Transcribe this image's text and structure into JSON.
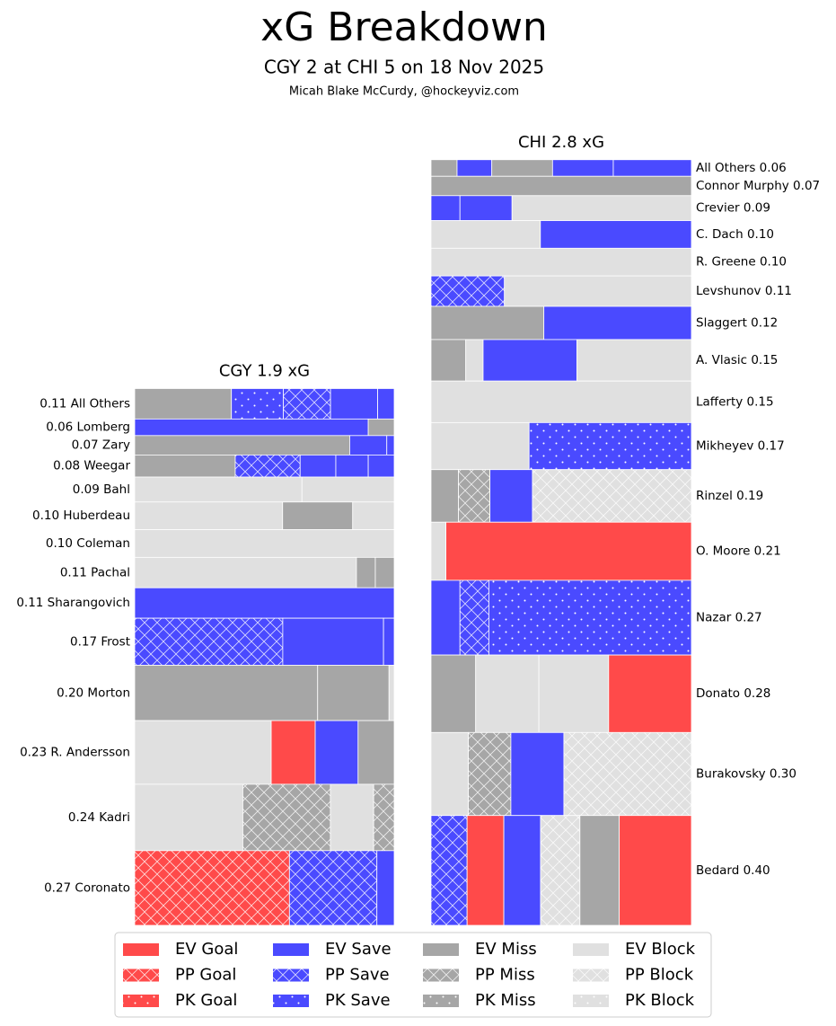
{
  "chart_data": {
    "type": "xg-breakdown",
    "title": "xG Breakdown",
    "subtitle": "CGY 2 at CHI 5 on 18 Nov 2025",
    "credit": "Micah Blake McCurdy, @hockeyviz.com",
    "legend": [
      {
        "name": "EV Goal",
        "color": "#ff4a4a",
        "pattern": "solid"
      },
      {
        "name": "PP Goal",
        "color": "#ff4a4a",
        "pattern": "cross"
      },
      {
        "name": "PK Goal",
        "color": "#ff4a4a",
        "pattern": "dots"
      },
      {
        "name": "EV Save",
        "color": "#4a4aff",
        "pattern": "solid"
      },
      {
        "name": "PP Save",
        "color": "#4a4aff",
        "pattern": "cross"
      },
      {
        "name": "PK Save",
        "color": "#4a4aff",
        "pattern": "dots"
      },
      {
        "name": "EV Miss",
        "color": "#a6a6a6",
        "pattern": "solid"
      },
      {
        "name": "PP Miss",
        "color": "#a6a6a6",
        "pattern": "cross"
      },
      {
        "name": "PK Miss",
        "color": "#a6a6a6",
        "pattern": "dots"
      },
      {
        "name": "EV Block",
        "color": "#e0e0e0",
        "pattern": "solid"
      },
      {
        "name": "PP Block",
        "color": "#e0e0e0",
        "pattern": "cross"
      },
      {
        "name": "PK Block",
        "color": "#e0e0e0",
        "pattern": "dots"
      }
    ],
    "panels": [
      {
        "title": "CGY 1.9 xG",
        "rows": [
          {
            "label": "0.11 All Others",
            "segments": [
              {
                "type": "EV Miss",
                "value": 0.041
              },
              {
                "type": "PK Save",
                "value": 0.022
              },
              {
                "type": "PP Save",
                "value": 0.02
              },
              {
                "type": "EV Save",
                "value": 0.02
              },
              {
                "type": "EV Save",
                "value": 0.007
              }
            ]
          },
          {
            "label": "0.06 Lomberg",
            "segments": [
              {
                "type": "EV Save",
                "value": 0.054
              },
              {
                "type": "EV Miss",
                "value": 0.006
              }
            ]
          },
          {
            "label": "0.07 Zary",
            "segments": [
              {
                "type": "EV Miss",
                "value": 0.058
              },
              {
                "type": "EV Save",
                "value": 0.01
              },
              {
                "type": "EV Save",
                "value": 0.002
              }
            ]
          },
          {
            "label": "0.08 Weegar",
            "segments": [
              {
                "type": "EV Miss",
                "value": 0.031
              },
              {
                "type": "PP Save",
                "value": 0.02
              },
              {
                "type": "EV Save",
                "value": 0.011
              },
              {
                "type": "EV Save",
                "value": 0.01
              },
              {
                "type": "EV Save",
                "value": 0.008
              }
            ]
          },
          {
            "label": "0.09 Bahl",
            "segments": [
              {
                "type": "EV Block",
                "value": 0.058
              },
              {
                "type": "EV Block",
                "value": 0.032
              }
            ]
          },
          {
            "label": "0.10 Huberdeau",
            "segments": [
              {
                "type": "EV Block",
                "value": 0.057
              },
              {
                "type": "EV Miss",
                "value": 0.027
              },
              {
                "type": "EV Block",
                "value": 0.016
              }
            ]
          },
          {
            "label": "0.10 Coleman",
            "segments": [
              {
                "type": "EV Block",
                "value": 0.1
              }
            ]
          },
          {
            "label": "0.11 Pachal",
            "segments": [
              {
                "type": "EV Block",
                "value": 0.094
              },
              {
                "type": "EV Miss",
                "value": 0.008
              },
              {
                "type": "EV Miss",
                "value": 0.008
              }
            ]
          },
          {
            "label": "0.11 Sharangovich",
            "segments": [
              {
                "type": "EV Save",
                "value": 0.11
              }
            ]
          },
          {
            "label": "0.17 Frost",
            "segments": [
              {
                "type": "PP Save",
                "value": 0.097
              },
              {
                "type": "EV Save",
                "value": 0.066
              },
              {
                "type": "EV Save",
                "value": 0.007
              }
            ]
          },
          {
            "label": "0.20 Morton",
            "segments": [
              {
                "type": "EV Miss",
                "value": 0.141
              },
              {
                "type": "EV Miss",
                "value": 0.055
              },
              {
                "type": "EV Block",
                "value": 0.004
              }
            ]
          },
          {
            "label": "0.23 R. Andersson",
            "segments": [
              {
                "type": "EV Block",
                "value": 0.121
              },
              {
                "type": "EV Goal",
                "value": 0.039
              },
              {
                "type": "EV Save",
                "value": 0.038
              },
              {
                "type": "EV Miss",
                "value": 0.032
              }
            ]
          },
          {
            "label": "0.24 Kadri",
            "segments": [
              {
                "type": "EV Block",
                "value": 0.1
              },
              {
                "type": "PP Miss",
                "value": 0.081
              },
              {
                "type": "EV Block",
                "value": 0.04
              },
              {
                "type": "PP Miss",
                "value": 0.019
              }
            ]
          },
          {
            "label": "0.27 Coronato",
            "segments": [
              {
                "type": "PP Goal",
                "value": 0.161
              },
              {
                "type": "PP Save",
                "value": 0.091
              },
              {
                "type": "EV Save",
                "value": 0.018
              }
            ]
          }
        ]
      },
      {
        "title": "CHI 2.8 xG",
        "rows": [
          {
            "label": "All Others 0.06",
            "segments": [
              {
                "type": "EV Miss",
                "value": 0.006
              },
              {
                "type": "EV Save",
                "value": 0.008
              },
              {
                "type": "EV Miss",
                "value": 0.014
              },
              {
                "type": "EV Save",
                "value": 0.014
              },
              {
                "type": "EV Save",
                "value": 0.018
              }
            ]
          },
          {
            "label": "Connor Murphy 0.07",
            "segments": [
              {
                "type": "EV Miss",
                "value": 0.07
              }
            ]
          },
          {
            "label": "Crevier 0.09",
            "segments": [
              {
                "type": "EV Save",
                "value": 0.01
              },
              {
                "type": "EV Save",
                "value": 0.018
              },
              {
                "type": "EV Block",
                "value": 0.062
              }
            ]
          },
          {
            "label": "C. Dach 0.10",
            "segments": [
              {
                "type": "EV Block",
                "value": 0.042
              },
              {
                "type": "EV Save",
                "value": 0.058
              }
            ]
          },
          {
            "label": "R. Greene 0.10",
            "segments": [
              {
                "type": "EV Block",
                "value": 0.1
              }
            ]
          },
          {
            "label": "Levshunov 0.11",
            "segments": [
              {
                "type": "PP Save",
                "value": 0.031
              },
              {
                "type": "EV Block",
                "value": 0.079
              }
            ]
          },
          {
            "label": "Slaggert 0.12",
            "segments": [
              {
                "type": "EV Miss",
                "value": 0.052
              },
              {
                "type": "EV Save",
                "value": 0.068
              }
            ]
          },
          {
            "label": "A. Vlasic 0.15",
            "segments": [
              {
                "type": "EV Miss",
                "value": 0.02
              },
              {
                "type": "EV Block",
                "value": 0.01
              },
              {
                "type": "EV Save",
                "value": 0.054
              },
              {
                "type": "EV Block",
                "value": 0.066
              }
            ]
          },
          {
            "label": "Lafferty 0.15",
            "segments": [
              {
                "type": "EV Block",
                "value": 0.15
              }
            ]
          },
          {
            "label": "Mikheyev 0.17",
            "segments": [
              {
                "type": "EV Block",
                "value": 0.064
              },
              {
                "type": "PK Save",
                "value": 0.106
              }
            ]
          },
          {
            "label": "Rinzel 0.19",
            "segments": [
              {
                "type": "EV Miss",
                "value": 0.02
              },
              {
                "type": "PP Miss",
                "value": 0.023
              },
              {
                "type": "EV Save",
                "value": 0.031
              },
              {
                "type": "PP Block",
                "value": 0.116
              }
            ]
          },
          {
            "label": "O. Moore 0.21",
            "segments": [
              {
                "type": "EV Block",
                "value": 0.012
              },
              {
                "type": "EV Goal",
                "value": 0.198
              }
            ]
          },
          {
            "label": "Nazar 0.27",
            "segments": [
              {
                "type": "EV Save",
                "value": 0.03
              },
              {
                "type": "PP Save",
                "value": 0.03
              },
              {
                "type": "PK Save",
                "value": 0.21
              }
            ]
          },
          {
            "label": "Donato 0.28",
            "segments": [
              {
                "type": "EV Miss",
                "value": 0.048
              },
              {
                "type": "EV Block",
                "value": 0.068
              },
              {
                "type": "EV Block",
                "value": 0.075
              },
              {
                "type": "EV Goal",
                "value": 0.089
              }
            ]
          },
          {
            "label": "Burakovsky 0.30",
            "segments": [
              {
                "type": "EV Block",
                "value": 0.043
              },
              {
                "type": "PP Miss",
                "value": 0.049
              },
              {
                "type": "EV Save",
                "value": 0.061
              },
              {
                "type": "PP Block",
                "value": 0.147
              }
            ]
          },
          {
            "label": "Bedard 0.40",
            "segments": [
              {
                "type": "PP Save",
                "value": 0.055
              },
              {
                "type": "EV Goal",
                "value": 0.056
              },
              {
                "type": "EV Save",
                "value": 0.056
              },
              {
                "type": "PP Block",
                "value": 0.06
              },
              {
                "type": "EV Miss",
                "value": 0.06
              },
              {
                "type": "EV Goal",
                "value": 0.11
              }
            ]
          }
        ]
      }
    ]
  }
}
